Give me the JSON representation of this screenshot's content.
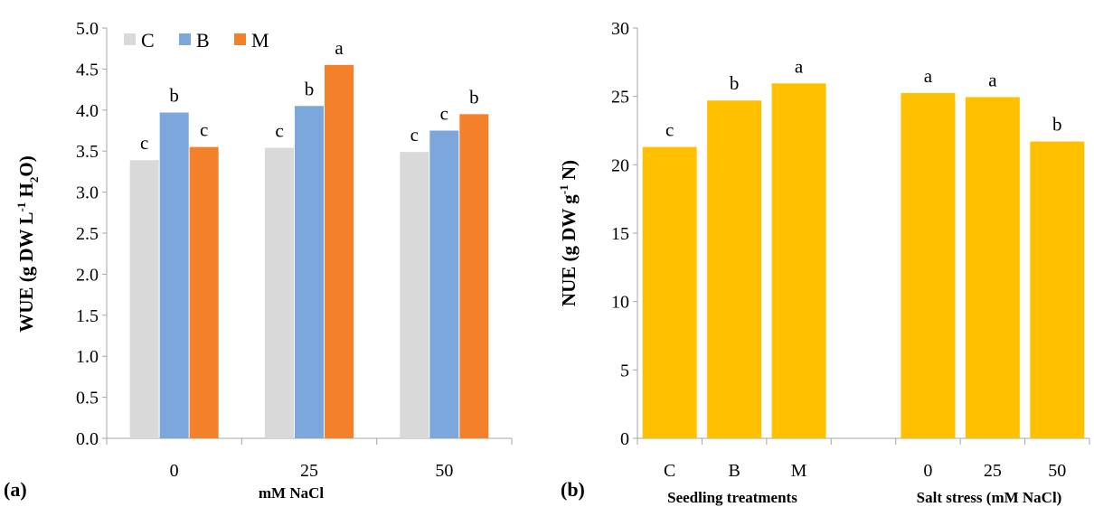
{
  "chart_data": [
    {
      "type": "bar",
      "panel_label": "(a)",
      "ylabel": "WUE (g DW L-1 H2O)",
      "ylabel_parts": {
        "pre": "WUE (g DW L",
        "sup": "-1",
        "mid": " H",
        "sub": "2",
        "post": "O)"
      },
      "xlabel": "mM NaCl",
      "ylim": [
        0,
        5.0
      ],
      "yticks": [
        "0.0",
        "0.5",
        "1.0",
        "1.5",
        "2.0",
        "2.5",
        "3.0",
        "3.5",
        "4.0",
        "4.5",
        "5.0"
      ],
      "categories": [
        "0",
        "25",
        "50"
      ],
      "legend_position": "top-left",
      "series": [
        {
          "name": "C",
          "color": "#d9d9d9",
          "values": [
            3.39,
            3.54,
            3.49
          ],
          "letters": [
            "c",
            "c",
            "c"
          ]
        },
        {
          "name": "B",
          "color": "#7ba7dc",
          "values": [
            3.97,
            4.05,
            3.75
          ],
          "letters": [
            "b",
            "b",
            "c"
          ]
        },
        {
          "name": "M",
          "color": "#f4802a",
          "values": [
            3.55,
            4.55,
            3.95
          ],
          "letters": [
            "c",
            "a",
            "b"
          ]
        }
      ]
    },
    {
      "type": "bar",
      "panel_label": "(b)",
      "ylabel": "NUE (g DW g-1 N)",
      "ylabel_parts": {
        "pre": "NUE (g DW g",
        "sup": "-1",
        "post": " N)"
      },
      "ylim": [
        0,
        30
      ],
      "yticks": [
        "0",
        "5",
        "10",
        "15",
        "20",
        "25",
        "30"
      ],
      "color": "#ffc000",
      "groups": [
        {
          "label": "Seedling treatments",
          "categories": [
            "C",
            "B",
            "M"
          ],
          "values": [
            21.3,
            24.7,
            25.95
          ],
          "letters": [
            "c",
            "b",
            "a"
          ]
        },
        {
          "label": "Salt stress (mM NaCl)",
          "categories": [
            "0",
            "25",
            "50"
          ],
          "values": [
            25.25,
            24.95,
            21.7
          ],
          "letters": [
            "a",
            "a",
            "b"
          ]
        }
      ]
    }
  ]
}
